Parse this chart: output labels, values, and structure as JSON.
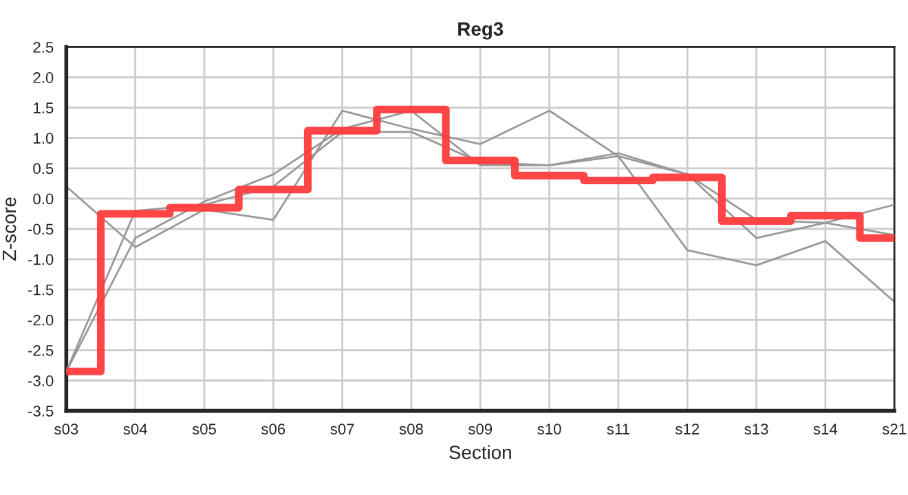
{
  "chart_data": {
    "type": "line",
    "title": "Reg3",
    "xlabel": "Section",
    "ylabel": "Z-score",
    "categories": [
      "s03",
      "s04",
      "s05",
      "s06",
      "s07",
      "s08",
      "s09",
      "s10",
      "s11",
      "s12",
      "s13",
      "s14",
      "s21"
    ],
    "series": [
      {
        "color": "#999999",
        "values": [
          0.2,
          -0.8,
          -0.18,
          -0.35,
          1.45,
          1.15,
          0.9,
          1.45,
          0.7,
          -0.85,
          -1.1,
          -0.7,
          -1.7
        ]
      },
      {
        "color": "#999999",
        "values": [
          -2.85,
          -0.65,
          -0.05,
          0.4,
          1.15,
          1.45,
          0.55,
          0.55,
          0.75,
          0.4,
          -0.65,
          -0.4,
          -0.1
        ]
      },
      {
        "color": "#999999",
        "values": [
          -2.85,
          -0.2,
          -0.1,
          0.2,
          1.1,
          1.1,
          0.6,
          0.55,
          0.7,
          0.4,
          -0.35,
          -0.4,
          -0.6
        ]
      },
      {
        "type": "step",
        "color": "#ff3b3b",
        "values": [
          -2.85,
          -0.25,
          -0.15,
          0.15,
          1.12,
          1.47,
          0.63,
          0.38,
          0.3,
          0.35,
          -0.37,
          -0.28,
          -0.65
        ]
      }
    ],
    "ylim": [
      -3.5,
      2.5
    ],
    "yticks": [
      -3.5,
      {
        "value": -3.0,
        "label": "-3.0"
      },
      -2.5,
      {
        "value": -2.0,
        "label": "-2.0"
      },
      -1.5,
      {
        "value": -1.0,
        "label": "-1.0"
      },
      -0.5,
      {
        "value": 0.0,
        "label": "0.0"
      },
      0.5,
      {
        "value": 1.0,
        "label": "1.0"
      },
      1.5,
      {
        "value": 2.0,
        "label": "2.0"
      },
      2.5
    ],
    "grid": true,
    "legend": false
  }
}
